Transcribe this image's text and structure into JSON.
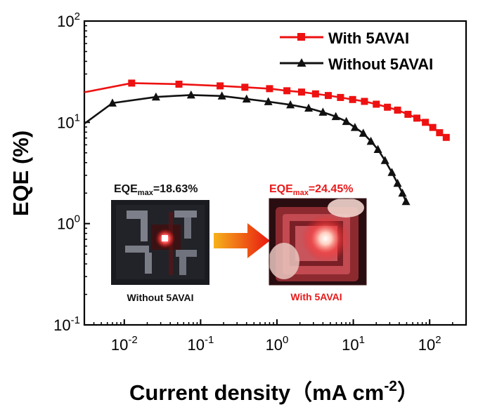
{
  "chart_data": {
    "type": "line",
    "xlabel": "Current density（mA cm",
    "xlabel_exp": "-2",
    "xlabel_close": "）",
    "ylabel": "EQE (%)",
    "xscale": "log",
    "yscale": "log",
    "xlim": [
      0.003,
      300
    ],
    "ylim": [
      0.1,
      100
    ],
    "x_ticks": [
      {
        "base": "10",
        "exp": "-2",
        "value": 0.01
      },
      {
        "base": "10",
        "exp": "-1",
        "value": 0.1
      },
      {
        "base": "10",
        "exp": "0",
        "value": 1
      },
      {
        "base": "10",
        "exp": "1",
        "value": 10
      },
      {
        "base": "10",
        "exp": "2",
        "value": 100
      }
    ],
    "y_ticks": [
      {
        "base": "10",
        "exp": "-1",
        "value": 0.1
      },
      {
        "base": "10",
        "exp": "0",
        "value": 1
      },
      {
        "base": "10",
        "exp": "1",
        "value": 10
      },
      {
        "base": "10",
        "exp": "2",
        "value": 100
      }
    ],
    "legend_position": "top-right",
    "grid": false,
    "series": [
      {
        "name": "With 5AVAI",
        "color": "#ee1111",
        "marker": "square",
        "x": [
          0.003,
          0.0125,
          0.052,
          0.18,
          0.38,
          0.8,
          1.35,
          2.1,
          3.2,
          4.7,
          6.8,
          9.8,
          14,
          20,
          28,
          38,
          52,
          68,
          88,
          110,
          135,
          165
        ],
        "y": [
          19.8,
          24.4,
          23.8,
          22.9,
          22.2,
          21.5,
          20.5,
          19.9,
          19.1,
          18.4,
          17.6,
          16.8,
          16.1,
          15.1,
          14.1,
          13.2,
          12.0,
          11.0,
          10.0,
          8.9,
          7.9,
          7.1
        ]
      },
      {
        "name": "Without 5AVAI",
        "color": "#111111",
        "marker": "triangle",
        "x": [
          0.003,
          0.007,
          0.026,
          0.075,
          0.19,
          0.4,
          0.77,
          1.5,
          2.6,
          4.0,
          5.9,
          8.1,
          10.5,
          13.5,
          17,
          21,
          26,
          32,
          38,
          44,
          49
        ],
        "y": [
          9.7,
          15.5,
          17.8,
          18.6,
          18.2,
          17.0,
          16.0,
          14.9,
          13.8,
          12.6,
          11.4,
          10.2,
          8.9,
          7.8,
          6.5,
          5.4,
          4.2,
          3.2,
          2.5,
          2.0,
          1.65
        ]
      }
    ],
    "inset": {
      "left": {
        "label_prefix": "EQE",
        "label_sub": "max",
        "label_value": "=18.63%",
        "caption": "Without 5AVAI",
        "color": "#111111"
      },
      "right": {
        "label_prefix": "EQE",
        "label_sub": "max",
        "label_value": "=24.45%",
        "caption": "With 5AVAI",
        "color": "#e8191a"
      }
    }
  }
}
